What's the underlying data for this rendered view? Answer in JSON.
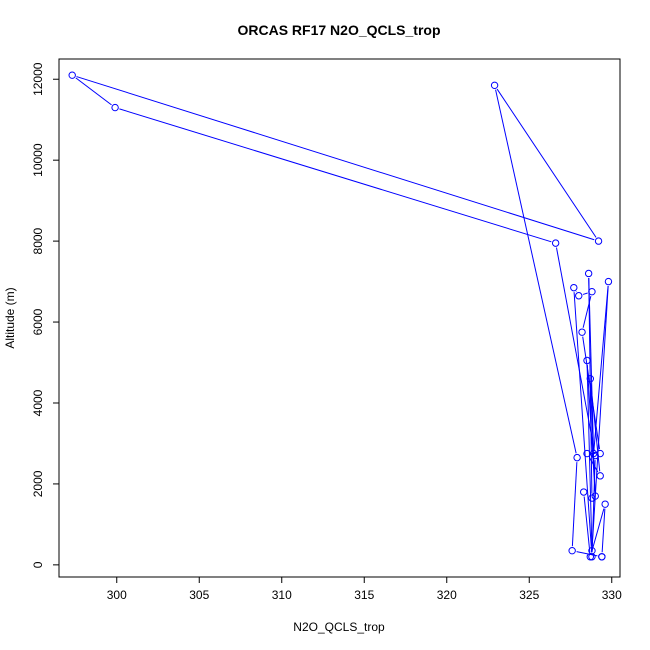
{
  "chart_data": {
    "type": "line",
    "title": "ORCAS RF17 N2O_QCLS_trop",
    "xlabel": "N2O_QCLS_trop",
    "ylabel": "Altitude (m)",
    "xlim": [
      296.5,
      330.5
    ],
    "ylim": [
      -300,
      12500
    ],
    "x_ticks": [
      300,
      305,
      310,
      315,
      320,
      325,
      330
    ],
    "x_tick_labels": [
      "300",
      "305",
      "310",
      "315",
      "320",
      "325",
      "330"
    ],
    "y_ticks": [
      0,
      2000,
      4000,
      6000,
      8000,
      10000,
      12000
    ],
    "y_tick_labels": [
      "0",
      "2000",
      "4000",
      "6000",
      "8000",
      "10000",
      "12000"
    ],
    "markers": "open-circle",
    "color": "#0000ff",
    "grid": false,
    "series": [
      {
        "points": [
          [
            329.4,
            200
          ],
          [
            329.6,
            1500
          ],
          [
            328.7,
            200
          ],
          [
            328.3,
            1800
          ],
          [
            328.8,
            1650
          ],
          [
            328.6,
            7200
          ],
          [
            328.9,
            2750
          ],
          [
            329.8,
            7000
          ],
          [
            328.8,
            350
          ],
          [
            328.5,
            5050
          ],
          [
            329.0,
            1700
          ],
          [
            328.7,
            4600
          ],
          [
            329.3,
            2200
          ],
          [
            328.5,
            2750
          ],
          [
            329.3,
            2750
          ],
          [
            328.2,
            5750
          ],
          [
            328.8,
            6750
          ],
          [
            328.0,
            6650
          ],
          [
            327.7,
            6850
          ],
          [
            328.8,
            200
          ],
          [
            329.0,
            2700
          ],
          [
            326.6,
            7950
          ],
          [
            299.9,
            11300
          ],
          [
            297.3,
            12100
          ],
          [
            329.2,
            8000
          ],
          [
            322.9,
            11850
          ],
          [
            327.9,
            2650
          ],
          [
            327.6,
            350
          ],
          [
            329.4,
            200
          ]
        ]
      }
    ]
  }
}
